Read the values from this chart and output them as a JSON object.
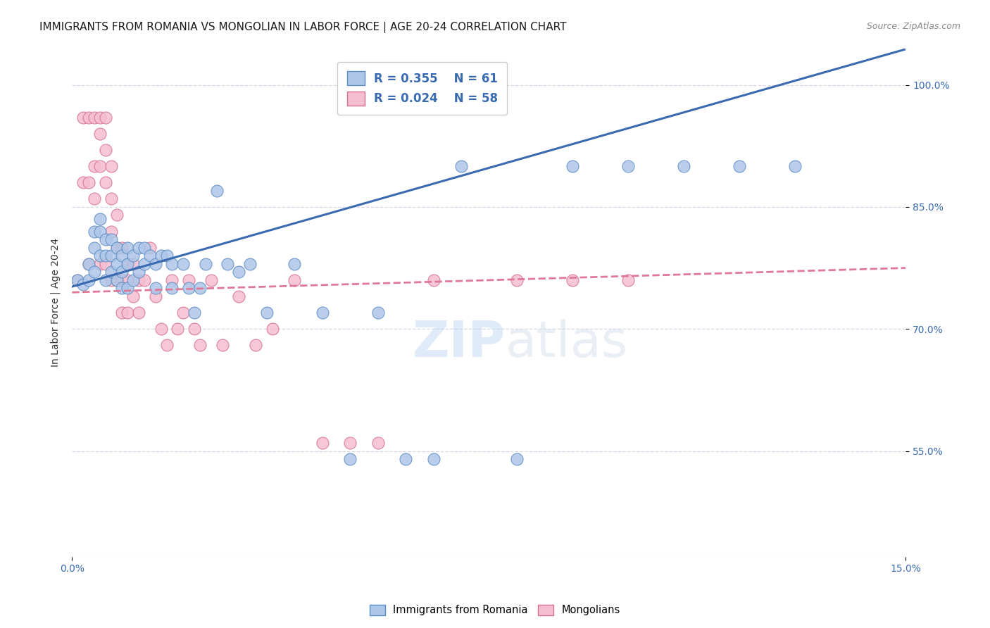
{
  "title": "IMMIGRANTS FROM ROMANIA VS MONGOLIAN IN LABOR FORCE | AGE 20-24 CORRELATION CHART",
  "source": "Source: ZipAtlas.com",
  "ylabel": "In Labor Force | Age 20-24",
  "yticks": [
    "100.0%",
    "85.0%",
    "70.0%",
    "55.0%"
  ],
  "ytick_vals": [
    1.0,
    0.85,
    0.7,
    0.55
  ],
  "xlim": [
    0.0,
    0.15
  ],
  "ylim": [
    0.42,
    1.045
  ],
  "legend_R_romania": "R = 0.355",
  "legend_N_romania": "N = 61",
  "legend_R_mongolian": "R = 0.024",
  "legend_N_mongolian": "N = 58",
  "romania_color": "#aec6e8",
  "mongolian_color": "#f5bdd0",
  "romania_edge_color": "#5b8dc4",
  "mongolian_edge_color": "#d47090",
  "romania_line_color": "#3a6ab0",
  "mongolian_line_color": "#e07898",
  "romania_scatter": {
    "x": [
      0.001,
      0.002,
      0.003,
      0.003,
      0.004,
      0.004,
      0.004,
      0.005,
      0.005,
      0.005,
      0.006,
      0.006,
      0.006,
      0.007,
      0.007,
      0.007,
      0.008,
      0.008,
      0.008,
      0.009,
      0.009,
      0.009,
      0.01,
      0.01,
      0.01,
      0.011,
      0.011,
      0.012,
      0.012,
      0.013,
      0.013,
      0.014,
      0.015,
      0.015,
      0.016,
      0.017,
      0.018,
      0.018,
      0.02,
      0.021,
      0.022,
      0.023,
      0.024,
      0.026,
      0.028,
      0.03,
      0.032,
      0.035,
      0.04,
      0.045,
      0.05,
      0.055,
      0.06,
      0.065,
      0.07,
      0.08,
      0.09,
      0.1,
      0.11,
      0.12,
      0.13
    ],
    "y": [
      0.76,
      0.755,
      0.78,
      0.76,
      0.82,
      0.8,
      0.77,
      0.835,
      0.82,
      0.79,
      0.81,
      0.79,
      0.76,
      0.81,
      0.79,
      0.77,
      0.8,
      0.78,
      0.76,
      0.79,
      0.77,
      0.75,
      0.8,
      0.78,
      0.75,
      0.79,
      0.76,
      0.8,
      0.77,
      0.8,
      0.78,
      0.79,
      0.78,
      0.75,
      0.79,
      0.79,
      0.78,
      0.75,
      0.78,
      0.75,
      0.72,
      0.75,
      0.78,
      0.87,
      0.78,
      0.77,
      0.78,
      0.72,
      0.78,
      0.72,
      0.54,
      0.72,
      0.54,
      0.54,
      0.9,
      0.54,
      0.9,
      0.9,
      0.9,
      0.9,
      0.9
    ]
  },
  "mongolian_scatter": {
    "x": [
      0.001,
      0.002,
      0.002,
      0.003,
      0.003,
      0.003,
      0.004,
      0.004,
      0.004,
      0.005,
      0.005,
      0.005,
      0.005,
      0.006,
      0.006,
      0.006,
      0.006,
      0.007,
      0.007,
      0.007,
      0.007,
      0.008,
      0.008,
      0.008,
      0.009,
      0.009,
      0.009,
      0.01,
      0.01,
      0.01,
      0.011,
      0.011,
      0.012,
      0.012,
      0.013,
      0.014,
      0.015,
      0.016,
      0.017,
      0.018,
      0.019,
      0.02,
      0.021,
      0.022,
      0.023,
      0.025,
      0.027,
      0.03,
      0.033,
      0.036,
      0.04,
      0.045,
      0.05,
      0.055,
      0.065,
      0.08,
      0.09,
      0.1
    ],
    "y": [
      0.76,
      0.96,
      0.88,
      0.96,
      0.88,
      0.78,
      0.96,
      0.9,
      0.86,
      0.96,
      0.94,
      0.9,
      0.78,
      0.96,
      0.92,
      0.88,
      0.78,
      0.9,
      0.86,
      0.82,
      0.76,
      0.84,
      0.8,
      0.76,
      0.8,
      0.76,
      0.72,
      0.78,
      0.76,
      0.72,
      0.78,
      0.74,
      0.76,
      0.72,
      0.76,
      0.8,
      0.74,
      0.7,
      0.68,
      0.76,
      0.7,
      0.72,
      0.76,
      0.7,
      0.68,
      0.76,
      0.68,
      0.74,
      0.68,
      0.7,
      0.76,
      0.56,
      0.56,
      0.56,
      0.76,
      0.76,
      0.76,
      0.76
    ]
  },
  "background_color": "#ffffff",
  "grid_color": "#d8d8e8"
}
